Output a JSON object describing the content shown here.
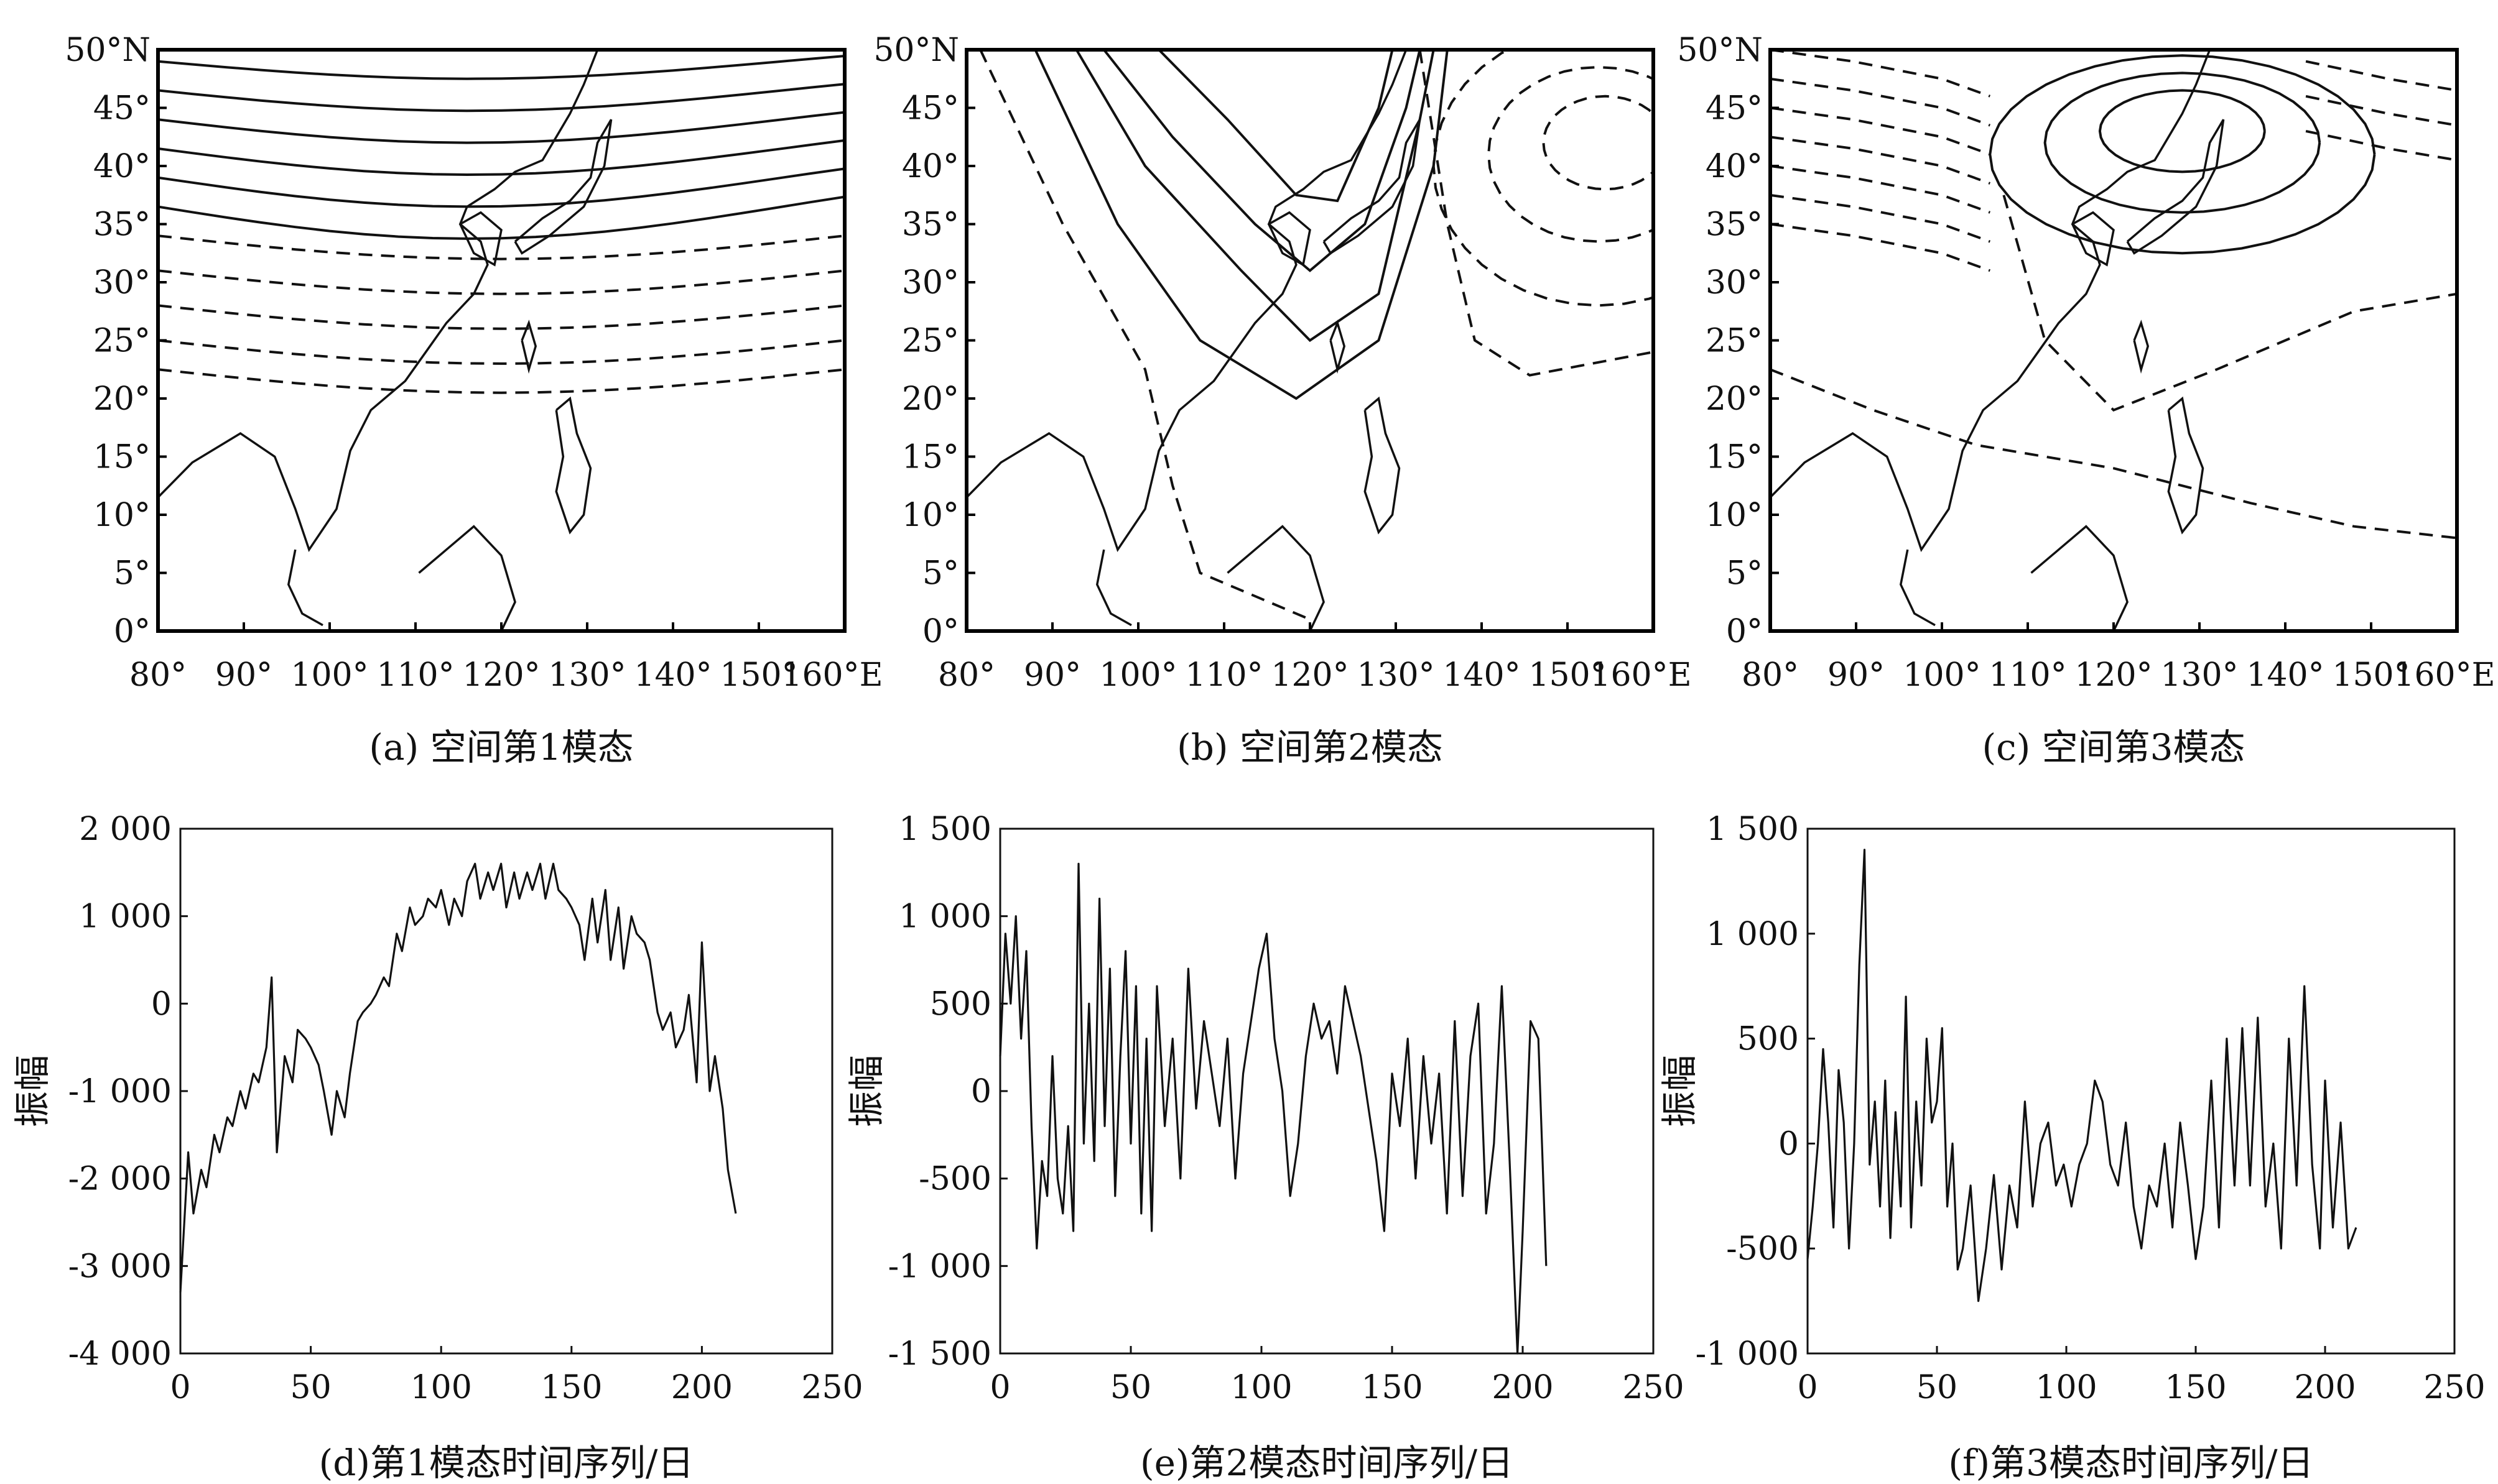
{
  "chart_data": [
    {
      "type": "map",
      "caption": "(a) 空间第1模态",
      "lon_ticks": [
        "80°",
        "90°",
        "100°",
        "110°",
        "120°",
        "130°",
        "140°",
        "150°",
        "160°E"
      ],
      "lat_ticks": [
        "0°",
        "5°",
        "10°",
        "15°",
        "20°",
        "25°",
        "30°",
        "35°",
        "40°",
        "45°",
        "50°N"
      ],
      "xlim": [
        80,
        160
      ],
      "ylim": [
        0,
        50
      ]
    },
    {
      "type": "map",
      "caption": "(b) 空间第2模态",
      "lon_ticks": [
        "80°",
        "90°",
        "100°",
        "110°",
        "120°",
        "130°",
        "140°",
        "150°",
        "160°E"
      ],
      "lat_ticks": [
        "0°",
        "5°",
        "10°",
        "15°",
        "20°",
        "25°",
        "30°",
        "35°",
        "40°",
        "45°",
        "50°N"
      ],
      "xlim": [
        80,
        160
      ],
      "ylim": [
        0,
        50
      ]
    },
    {
      "type": "map",
      "caption": "(c) 空间第3模态",
      "lon_ticks": [
        "80°",
        "90°",
        "100°",
        "110°",
        "120°",
        "130°",
        "140°",
        "150°",
        "160°E"
      ],
      "lat_ticks": [
        "0°",
        "5°",
        "10°",
        "15°",
        "20°",
        "25°",
        "30°",
        "35°",
        "40°",
        "45°",
        "50°N"
      ],
      "xlim": [
        80,
        160
      ],
      "ylim": [
        0,
        50
      ]
    },
    {
      "type": "line",
      "caption": "(d)第1模态时间序列/日",
      "ylabel": "振幅",
      "xlim": [
        0,
        250
      ],
      "ylim": [
        -4000,
        2000
      ],
      "x_ticks": [
        "0",
        "50",
        "100",
        "150",
        "200",
        "250"
      ],
      "y_ticks": [
        "-4 000",
        "-3 000",
        "-2 000",
        "-1 000",
        "0",
        "1 000",
        "2 000"
      ],
      "x": [
        0,
        3,
        5,
        8,
        10,
        13,
        15,
        18,
        20,
        23,
        25,
        28,
        30,
        33,
        35,
        37,
        40,
        43,
        45,
        48,
        50,
        53,
        55,
        58,
        60,
        63,
        65,
        68,
        70,
        73,
        75,
        78,
        80,
        83,
        85,
        88,
        90,
        93,
        95,
        98,
        100,
        103,
        105,
        108,
        110,
        113,
        115,
        118,
        120,
        123,
        125,
        128,
        130,
        133,
        135,
        138,
        140,
        143,
        145,
        148,
        150,
        153,
        155,
        158,
        160,
        163,
        165,
        168,
        170,
        173,
        175,
        178,
        180,
        183,
        185,
        188,
        190,
        193,
        195,
        198,
        200,
        203,
        205,
        208,
        210,
        213
      ],
      "values": [
        -3300,
        -1700,
        -2400,
        -1900,
        -2100,
        -1500,
        -1700,
        -1300,
        -1400,
        -1000,
        -1200,
        -800,
        -900,
        -500,
        300,
        -1700,
        -600,
        -900,
        -300,
        -400,
        -500,
        -700,
        -1000,
        -1500,
        -1000,
        -1300,
        -800,
        -200,
        -100,
        0,
        100,
        300,
        200,
        800,
        600,
        1100,
        900,
        1000,
        1200,
        1100,
        1300,
        900,
        1200,
        1000,
        1400,
        1600,
        1200,
        1500,
        1300,
        1600,
        1100,
        1500,
        1200,
        1500,
        1300,
        1600,
        1200,
        1600,
        1300,
        1200,
        1100,
        900,
        500,
        1200,
        700,
        1300,
        500,
        1100,
        400,
        1000,
        800,
        700,
        500,
        -100,
        -300,
        -100,
        -500,
        -300,
        100,
        -900,
        700,
        -1000,
        -600,
        -1200,
        -1900,
        -2400
      ]
    },
    {
      "type": "line",
      "caption": "(e)第2模态时间序列/日",
      "ylabel": "振幅",
      "xlim": [
        0,
        250
      ],
      "ylim": [
        -1500,
        1500
      ],
      "x_ticks": [
        "0",
        "50",
        "100",
        "150",
        "200",
        "250"
      ],
      "y_ticks": [
        "-1 500",
        "-1 000",
        "-500",
        "0",
        "500",
        "1 000",
        "1 500"
      ],
      "x": [
        0,
        2,
        4,
        6,
        8,
        10,
        12,
        14,
        16,
        18,
        20,
        22,
        24,
        26,
        28,
        30,
        32,
        34,
        36,
        38,
        40,
        42,
        44,
        46,
        48,
        50,
        52,
        54,
        56,
        58,
        60,
        63,
        66,
        69,
        72,
        75,
        78,
        81,
        84,
        87,
        90,
        93,
        96,
        99,
        102,
        105,
        108,
        111,
        114,
        117,
        120,
        123,
        126,
        129,
        132,
        135,
        138,
        141,
        144,
        147,
        150,
        153,
        156,
        159,
        162,
        165,
        168,
        171,
        174,
        177,
        180,
        183,
        186,
        189,
        192,
        195,
        198,
        200,
        203,
        206,
        209
      ],
      "values": [
        200,
        900,
        500,
        1000,
        300,
        800,
        -200,
        -900,
        -400,
        -600,
        200,
        -500,
        -700,
        -200,
        -800,
        1300,
        -300,
        500,
        -400,
        1100,
        -200,
        700,
        -600,
        200,
        800,
        -300,
        600,
        -700,
        300,
        -800,
        600,
        -200,
        300,
        -500,
        700,
        -100,
        400,
        100,
        -200,
        300,
        -500,
        100,
        400,
        700,
        900,
        300,
        0,
        -600,
        -300,
        200,
        500,
        300,
        400,
        100,
        600,
        400,
        200,
        -100,
        -400,
        -800,
        100,
        -200,
        300,
        -500,
        200,
        -300,
        100,
        -700,
        400,
        -600,
        200,
        500,
        -700,
        -300,
        600,
        -400,
        -1500,
        -800,
        400,
        300,
        -1000
      ]
    },
    {
      "type": "line",
      "caption": "(f)第3模态时间序列/日",
      "ylabel": "振幅",
      "xlim": [
        0,
        250
      ],
      "ylim": [
        -1000,
        1500
      ],
      "x_ticks": [
        "0",
        "50",
        "100",
        "150",
        "200",
        "250"
      ],
      "y_ticks": [
        "-1 000",
        "-500",
        "0",
        "500",
        "1 000",
        "1 500"
      ],
      "x": [
        0,
        2,
        4,
        6,
        8,
        10,
        12,
        14,
        16,
        18,
        20,
        22,
        24,
        26,
        28,
        30,
        32,
        34,
        36,
        38,
        40,
        42,
        44,
        46,
        48,
        50,
        52,
        54,
        56,
        58,
        60,
        63,
        66,
        69,
        72,
        75,
        78,
        81,
        84,
        87,
        90,
        93,
        96,
        99,
        102,
        105,
        108,
        111,
        114,
        117,
        120,
        123,
        126,
        129,
        132,
        135,
        138,
        141,
        144,
        147,
        150,
        153,
        156,
        159,
        162,
        165,
        168,
        171,
        174,
        177,
        180,
        183,
        186,
        189,
        192,
        195,
        198,
        200,
        203,
        206,
        209,
        212
      ],
      "values": [
        -550,
        -300,
        0,
        450,
        100,
        -400,
        350,
        100,
        -500,
        0,
        850,
        1400,
        -100,
        200,
        -300,
        300,
        -450,
        150,
        -300,
        700,
        -400,
        200,
        -200,
        500,
        100,
        200,
        550,
        -300,
        0,
        -600,
        -500,
        -200,
        -750,
        -500,
        -150,
        -600,
        -200,
        -400,
        200,
        -300,
        0,
        100,
        -200,
        -100,
        -300,
        -100,
        0,
        300,
        200,
        -100,
        -200,
        100,
        -300,
        -500,
        -200,
        -300,
        0,
        -400,
        100,
        -200,
        -550,
        -300,
        300,
        -400,
        500,
        -200,
        550,
        -200,
        600,
        -300,
        0,
        -500,
        500,
        -200,
        750,
        -100,
        -500,
        300,
        -400,
        100,
        -500,
        -400
      ]
    }
  ]
}
